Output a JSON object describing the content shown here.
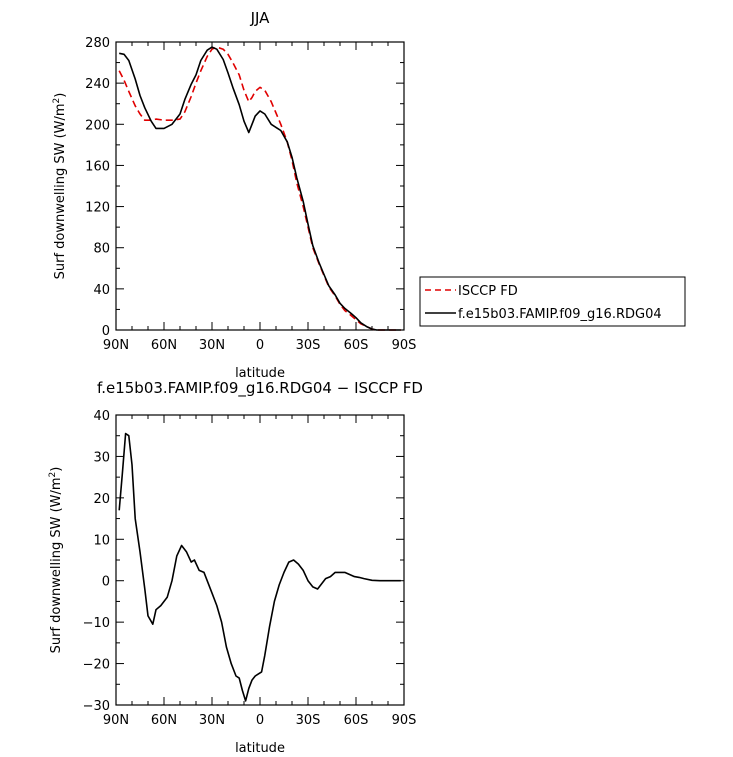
{
  "chart_data": [
    {
      "type": "line",
      "title": "JJA",
      "xlabel": "latitude",
      "ylabel": "Surf downwelling SW (W/m²)",
      "xlim": [
        90,
        -90
      ],
      "ylim": [
        0,
        280
      ],
      "x_ticks": [
        90,
        60,
        30,
        0,
        -30,
        -60,
        -90
      ],
      "x_tick_labels": [
        "90N",
        "60N",
        "30N",
        "0",
        "30S",
        "60S",
        "90S"
      ],
      "y_ticks": [
        0,
        40,
        80,
        120,
        160,
        200,
        240,
        280
      ],
      "y_tick_labels": [
        "0",
        "40",
        "80",
        "120",
        "160",
        "200",
        "240",
        "280"
      ],
      "legend_position": "right",
      "series": [
        {
          "name": "ISCCP FD",
          "color": "#e00000",
          "style": "dashed",
          "x": [
            88,
            85,
            82,
            78,
            75,
            72,
            68,
            65,
            60,
            55,
            50,
            47,
            43,
            40,
            37,
            33,
            30,
            27,
            23,
            20,
            17,
            13,
            10,
            7,
            5,
            3,
            0,
            -3,
            -7,
            -10,
            -13,
            -17,
            -20,
            -23,
            -27,
            -30,
            -33,
            -37,
            -40,
            -43,
            -47,
            -50,
            -53,
            -57,
            -60,
            -63,
            -67,
            -70,
            -73,
            -77,
            -80,
            -83,
            -85,
            -88
          ],
          "y": [
            252,
            243,
            232,
            218,
            210,
            204,
            204,
            205,
            204,
            204,
            205,
            212,
            227,
            240,
            252,
            266,
            273,
            275,
            273,
            268,
            260,
            248,
            233,
            222,
            226,
            232,
            236,
            233,
            222,
            211,
            200,
            183,
            165,
            143,
            120,
            100,
            80,
            64,
            53,
            42,
            33,
            25,
            19,
            14,
            10,
            6,
            3,
            1,
            0,
            0,
            0,
            0,
            0,
            0
          ]
        },
        {
          "name": "f.e15b03.FAMIP.f09_g16.RDG04",
          "color": "#000000",
          "style": "solid",
          "x": [
            88,
            85,
            82,
            78,
            75,
            72,
            68,
            65,
            60,
            55,
            50,
            47,
            43,
            40,
            37,
            33,
            30,
            27,
            23,
            20,
            17,
            13,
            10,
            7,
            5,
            3,
            0,
            -3,
            -7,
            -10,
            -13,
            -17,
            -20,
            -23,
            -27,
            -30,
            -33,
            -37,
            -40,
            -43,
            -47,
            -50,
            -53,
            -57,
            -60,
            -63,
            -67,
            -70,
            -73,
            -77,
            -80,
            -83,
            -85,
            -88
          ],
          "y": [
            269,
            268,
            262,
            244,
            228,
            216,
            203,
            196,
            196,
            200,
            210,
            224,
            239,
            248,
            262,
            272,
            275,
            273,
            263,
            250,
            236,
            219,
            203,
            192,
            200,
            208,
            213,
            210,
            200,
            197,
            194,
            183,
            168,
            148,
            125,
            103,
            82,
            65,
            54,
            43,
            34,
            26,
            21,
            16,
            12,
            7,
            3,
            1,
            0,
            0,
            0,
            0,
            0,
            0
          ]
        }
      ]
    },
    {
      "type": "line",
      "title": "f.e15b03.FAMIP.f09_g16.RDG04 − ISCCP FD",
      "xlabel": "latitude",
      "ylabel": "Surf downwelling SW (W/m²)",
      "xlim": [
        90,
        -90
      ],
      "ylim": [
        -30,
        40
      ],
      "x_ticks": [
        90,
        60,
        30,
        0,
        -30,
        -60,
        -90
      ],
      "x_tick_labels": [
        "90N",
        "60N",
        "30N",
        "0",
        "30S",
        "60S",
        "90S"
      ],
      "y_ticks": [
        -30,
        -20,
        -10,
        0,
        10,
        20,
        30,
        40
      ],
      "y_tick_labels": [
        "−30",
        "−20",
        "−10",
        "0",
        "10",
        "20",
        "30",
        "40"
      ],
      "series": [
        {
          "color": "#000000",
          "style": "solid",
          "x": [
            88,
            86,
            84,
            82,
            80,
            78,
            75,
            72,
            70,
            67,
            65,
            62,
            58,
            55,
            52,
            49,
            46,
            43,
            41,
            38,
            35,
            33,
            30,
            27,
            24,
            21,
            18,
            15,
            13,
            11,
            9,
            7,
            5,
            3,
            1,
            -1,
            -3,
            -6,
            -9,
            -12,
            -15,
            -18,
            -21,
            -24,
            -27,
            -30,
            -33,
            -36,
            -38,
            -41,
            -44,
            -47,
            -50,
            -53,
            -56,
            -59,
            -62,
            -65,
            -70,
            -75,
            -80,
            -85,
            -88
          ],
          "y": [
            17,
            26,
            35.5,
            35,
            28,
            15,
            7,
            -2,
            -8.5,
            -10.5,
            -7,
            -6,
            -4,
            0,
            6,
            8.5,
            7,
            4.5,
            5,
            2.5,
            2,
            0,
            -3,
            -6,
            -10,
            -16,
            -20,
            -23,
            -23.5,
            -26.5,
            -29,
            -26,
            -24,
            -23,
            -22.5,
            -22,
            -18,
            -11,
            -5,
            -1,
            2,
            4.5,
            5,
            4,
            2.5,
            0,
            -1.5,
            -2,
            -1,
            0.5,
            1,
            2,
            2,
            2,
            1.5,
            1,
            0.8,
            0.5,
            0.1,
            0,
            0,
            0,
            0
          ]
        }
      ]
    }
  ]
}
